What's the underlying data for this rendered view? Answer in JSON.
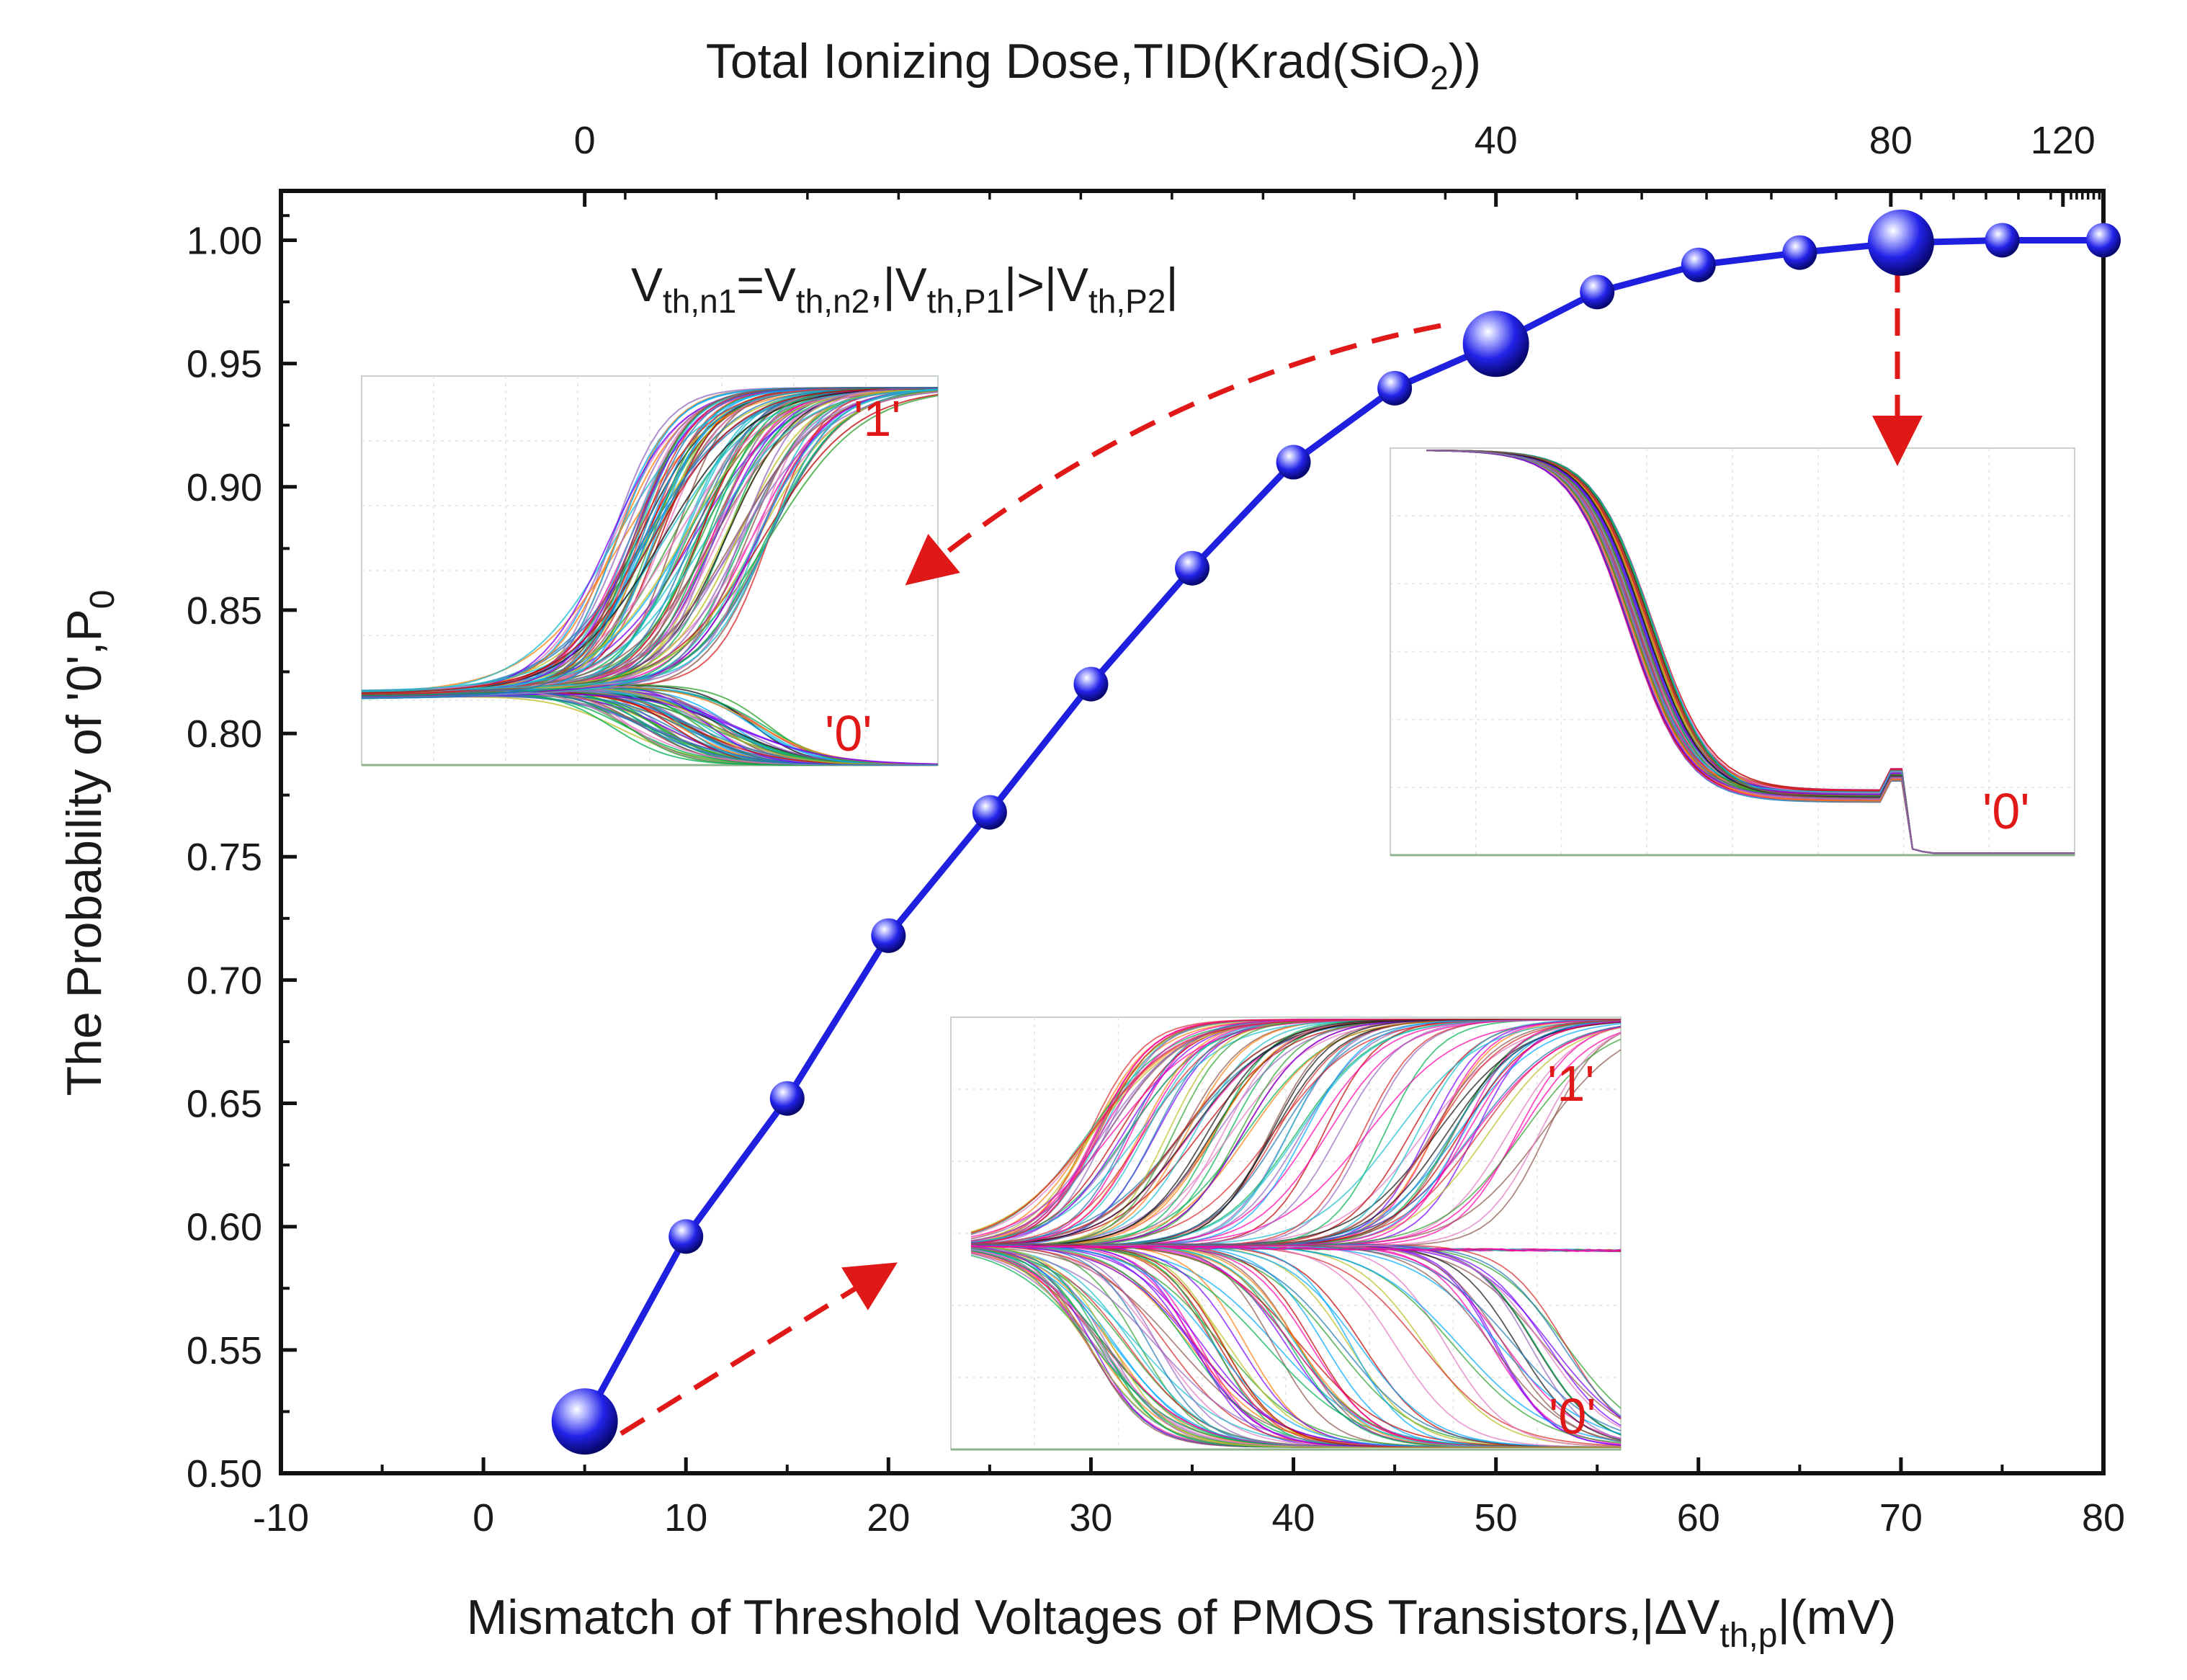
{
  "chart_data": {
    "type": "line",
    "title": "",
    "xlabel": "Mismatch of Threshold Voltages of PMOS Transistors,|ΔVth,p|(mV)",
    "xlabel_main": "Mismatch of Threshold Voltages of PMOS Transistors,|",
    "xlabel_delta": "ΔV",
    "xlabel_sub": "th,p",
    "xlabel_tail": "|(mV)",
    "ylabel": "The Probability of '0',P0",
    "ylabel_main": "The Probability of '0',P",
    "ylabel_sub": "0",
    "top_xlabel": "Total Ionizing Dose,TID(Krad(SiO2))",
    "top_xlabel_main": "Total Ionizing Dose,TID(Krad(SiO",
    "top_xlabel_sub": "2",
    "top_xlabel_tail": "))",
    "xlim": [
      -10,
      80
    ],
    "ylim": [
      0.5,
      1.02
    ],
    "x_ticks": [
      "-10",
      "0",
      "10",
      "20",
      "30",
      "40",
      "50",
      "60",
      "70",
      "80"
    ],
    "y_ticks": [
      "0.50",
      "0.55",
      "0.60",
      "0.65",
      "0.70",
      "0.75",
      "0.80",
      "0.85",
      "0.90",
      "0.95",
      "1.00"
    ],
    "top_x_ticks": [
      {
        "label": "0",
        "at_x": 5
      },
      {
        "label": "40",
        "at_x": 50
      },
      {
        "label": "80",
        "at_x": 69.5
      },
      {
        "label": "120",
        "at_x": 78
      }
    ],
    "grid": false,
    "series": [
      {
        "color": "#1f1fe0",
        "points": [
          {
            "x": 5,
            "y": 0.521
          },
          {
            "x": 10,
            "y": 0.596
          },
          {
            "x": 15,
            "y": 0.652
          },
          {
            "x": 20,
            "y": 0.718
          },
          {
            "x": 25,
            "y": 0.768
          },
          {
            "x": 30,
            "y": 0.82
          },
          {
            "x": 35,
            "y": 0.867
          },
          {
            "x": 40,
            "y": 0.91
          },
          {
            "x": 45,
            "y": 0.94
          },
          {
            "x": 50,
            "y": 0.958
          },
          {
            "x": 55,
            "y": 0.979
          },
          {
            "x": 60,
            "y": 0.99
          },
          {
            "x": 65,
            "y": 0.995
          },
          {
            "x": 70,
            "y": 0.999
          },
          {
            "x": 75,
            "y": 1.0
          },
          {
            "x": 80,
            "y": 1.0
          }
        ],
        "highlighted_x": [
          5,
          50,
          70
        ]
      }
    ],
    "annotations": [
      {
        "text": "Vth,n1=Vth,n2,|Vth,P1|>|Vth,P2|",
        "parts": {
          "v1": "V",
          "s1": "th,n1",
          "eq": "=V",
          "s2": "th,n2",
          "p1": ",|V",
          "s3": "th,P1",
          "p2": "|>|V",
          "s4": "th,P2",
          "p3": "|"
        }
      }
    ],
    "insets": [
      {
        "id": "mid",
        "state_labels": [
          "'1'",
          "'0'"
        ]
      },
      {
        "id": "high",
        "state_labels": [
          "'0'"
        ]
      },
      {
        "id": "low",
        "state_labels": [
          "'1'",
          "'0'"
        ]
      }
    ],
    "colors": {
      "series": "#1f1fe0",
      "arrow": "#e01818",
      "state_label": "#e01818"
    }
  }
}
